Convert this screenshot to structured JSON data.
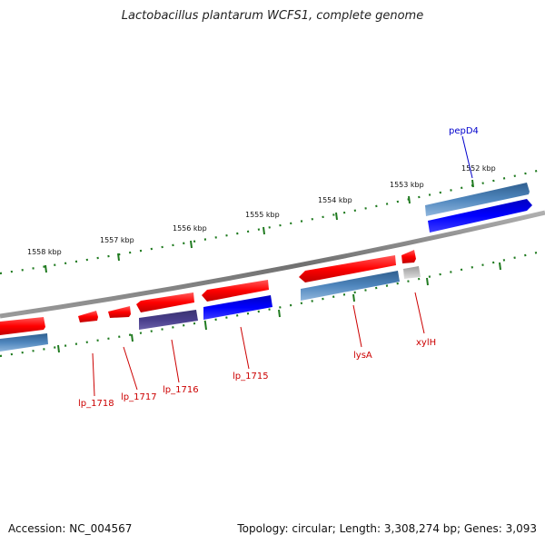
{
  "title": "Lactobacillus plantarum WCFS1, complete genome",
  "footer": {
    "accession": "Accession: NC_004567",
    "stats": "Topology: circular; Length: 3,308,274 bp; Genes: 3,093"
  },
  "colors": {
    "backbone": "#808080",
    "tick": "#1f7a1f",
    "gene_red": "#ff1a1a",
    "gene_blue": "#0000ee",
    "gene_steel": "#4682b4",
    "gene_slate": "#483d8b",
    "gene_grey": "#b8b8b8",
    "label_red": "#cc0000",
    "label_blue": "#0000cc"
  },
  "map": {
    "tick_labels": [
      "1558 kbp",
      "1557 kbp",
      "1556 kbp",
      "1555 kbp",
      "1554 kbp",
      "1553 kbp",
      "1552 kbp"
    ],
    "genes": [
      {
        "id": "g-red-far-left",
        "label": "",
        "color": "gene_red",
        "strand": "forward"
      },
      {
        "id": "g-steel-far-left",
        "label": "",
        "color": "gene_steel",
        "strand": "reverse"
      },
      {
        "id": "g-lp1718",
        "label": "lp_1718",
        "color": "gene_red",
        "strand": "forward"
      },
      {
        "id": "g-lp1717",
        "label": "lp_1717",
        "color": "gene_red",
        "strand": "forward"
      },
      {
        "id": "g-lp1716",
        "label": "lp_1716",
        "color": "gene_red",
        "strand": "forward"
      },
      {
        "id": "g-lp1716-b",
        "label": "",
        "color": "gene_slate",
        "strand": "reverse"
      },
      {
        "id": "g-lp1715",
        "label": "lp_1715",
        "color": "gene_red",
        "strand": "forward"
      },
      {
        "id": "g-lp1715-b",
        "label": "",
        "color": "gene_blue",
        "strand": "reverse"
      },
      {
        "id": "g-lysA",
        "label": "lysA",
        "color": "gene_red",
        "strand": "forward"
      },
      {
        "id": "g-lysA-b",
        "label": "",
        "color": "gene_steel",
        "strand": "reverse"
      },
      {
        "id": "g-xylH",
        "label": "xylH",
        "color": "gene_red",
        "strand": "forward"
      },
      {
        "id": "g-xylH-b",
        "label": "",
        "color": "gene_grey",
        "strand": "reverse"
      },
      {
        "id": "g-pepD4",
        "label": "pepD4",
        "color": "gene_steel",
        "strand": "forward"
      },
      {
        "id": "g-pepD4-b",
        "label": "",
        "color": "gene_blue",
        "strand": "reverse"
      }
    ]
  }
}
